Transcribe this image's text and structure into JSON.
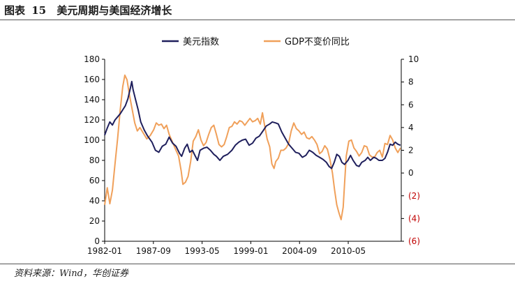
{
  "figure": {
    "label": "图表",
    "number": "15",
    "title": "美元周期与美国经济增长"
  },
  "source": "资料来源：Wind，华创证券",
  "colors": {
    "usd_index": "#1f1f5c",
    "gdp_yoy": "#f0a05a",
    "axis": "#000000",
    "negative_label": "#c00000"
  },
  "chart_data": {
    "type": "line",
    "title": "美元周期与美国经济增长",
    "xlabel": "",
    "ylabel": "",
    "x_start_year": 1982.0,
    "x_end_year": 2016.5,
    "x_tick_labels": [
      "1982-01",
      "1987-09",
      "1993-05",
      "1999-01",
      "2004-09",
      "2010-05"
    ],
    "x_tick_years": [
      1982.0,
      1987.667,
      1993.333,
      1999.0,
      2004.667,
      2010.333
    ],
    "ylim_left": [
      0,
      180
    ],
    "yticks_left": [
      0,
      20,
      40,
      60,
      80,
      100,
      120,
      140,
      160,
      180
    ],
    "ytick_labels_left": [
      "0",
      "20",
      "40",
      "60",
      "80",
      "100",
      "120",
      "140",
      "160",
      "180"
    ],
    "ylim_right": [
      -6,
      10
    ],
    "yticks_right": [
      -6,
      -4,
      -2,
      0,
      2,
      4,
      6,
      8,
      10
    ],
    "ytick_labels_right": [
      "(6)",
      "(4)",
      "(2)",
      "0",
      "2",
      "4",
      "6",
      "8",
      "10"
    ],
    "legend_position": "top",
    "series": [
      {
        "name": "美元指数",
        "axis": "left",
        "points": [
          [
            1982.0,
            105
          ],
          [
            1982.3,
            112
          ],
          [
            1982.6,
            118
          ],
          [
            1982.9,
            115
          ],
          [
            1983.2,
            120
          ],
          [
            1983.5,
            123
          ],
          [
            1983.8,
            126
          ],
          [
            1984.1,
            130
          ],
          [
            1984.4,
            134
          ],
          [
            1984.7,
            141
          ],
          [
            1985.0,
            152
          ],
          [
            1985.15,
            158
          ],
          [
            1985.3,
            150
          ],
          [
            1985.6,
            140
          ],
          [
            1985.9,
            130
          ],
          [
            1986.2,
            118
          ],
          [
            1986.6,
            110
          ],
          [
            1987.0,
            104
          ],
          [
            1987.5,
            98
          ],
          [
            1987.9,
            90
          ],
          [
            1988.3,
            88
          ],
          [
            1988.7,
            94
          ],
          [
            1989.1,
            96
          ],
          [
            1989.5,
            103
          ],
          [
            1989.9,
            97
          ],
          [
            1990.3,
            94
          ],
          [
            1990.7,
            87
          ],
          [
            1990.95,
            84
          ],
          [
            1991.3,
            92
          ],
          [
            1991.6,
            96
          ],
          [
            1991.9,
            88
          ],
          [
            1992.2,
            90
          ],
          [
            1992.5,
            85
          ],
          [
            1992.8,
            80
          ],
          [
            1993.1,
            90
          ],
          [
            1993.5,
            92
          ],
          [
            1993.9,
            93
          ],
          [
            1994.3,
            90
          ],
          [
            1994.7,
            86
          ],
          [
            1995.0,
            84
          ],
          [
            1995.4,
            80
          ],
          [
            1995.8,
            84
          ],
          [
            1996.3,
            86
          ],
          [
            1996.8,
            90
          ],
          [
            1997.2,
            95
          ],
          [
            1997.6,
            98
          ],
          [
            1998.0,
            100
          ],
          [
            1998.4,
            101
          ],
          [
            1998.8,
            95
          ],
          [
            1999.2,
            97
          ],
          [
            1999.6,
            102
          ],
          [
            2000.0,
            104
          ],
          [
            2000.4,
            109
          ],
          [
            2000.8,
            114
          ],
          [
            2001.2,
            116
          ],
          [
            2001.5,
            118
          ],
          [
            2001.9,
            117
          ],
          [
            2002.2,
            116
          ],
          [
            2002.6,
            108
          ],
          [
            2003.0,
            102
          ],
          [
            2003.4,
            96
          ],
          [
            2003.8,
            92
          ],
          [
            2004.2,
            88
          ],
          [
            2004.6,
            87
          ],
          [
            2005.0,
            83
          ],
          [
            2005.4,
            85
          ],
          [
            2005.8,
            90
          ],
          [
            2006.2,
            88
          ],
          [
            2006.6,
            85
          ],
          [
            2007.0,
            83
          ],
          [
            2007.4,
            81
          ],
          [
            2007.8,
            78
          ],
          [
            2008.1,
            74
          ],
          [
            2008.4,
            72
          ],
          [
            2008.7,
            78
          ],
          [
            2009.0,
            86
          ],
          [
            2009.3,
            84
          ],
          [
            2009.6,
            78
          ],
          [
            2009.9,
            76
          ],
          [
            2010.3,
            80
          ],
          [
            2010.6,
            85
          ],
          [
            2010.9,
            80
          ],
          [
            2011.3,
            75
          ],
          [
            2011.6,
            74
          ],
          [
            2011.9,
            78
          ],
          [
            2012.3,
            80
          ],
          [
            2012.6,
            83
          ],
          [
            2012.9,
            80
          ],
          [
            2013.3,
            83
          ],
          [
            2013.6,
            82
          ],
          [
            2013.9,
            80
          ],
          [
            2014.3,
            80
          ],
          [
            2014.6,
            82
          ],
          [
            2014.9,
            88
          ],
          [
            2015.2,
            96
          ],
          [
            2015.5,
            95
          ],
          [
            2015.8,
            98
          ],
          [
            2016.1,
            96
          ],
          [
            2016.4,
            95
          ]
        ]
      },
      {
        "name": "GDP不变价同比",
        "axis": "right",
        "points": [
          [
            1982.0,
            -2.8
          ],
          [
            1982.3,
            -1.3
          ],
          [
            1982.6,
            -2.7
          ],
          [
            1982.9,
            -1.5
          ],
          [
            1983.2,
            0.8
          ],
          [
            1983.5,
            3.0
          ],
          [
            1983.8,
            5.5
          ],
          [
            1984.1,
            7.6
          ],
          [
            1984.35,
            8.6
          ],
          [
            1984.6,
            8.2
          ],
          [
            1984.9,
            6.8
          ],
          [
            1985.2,
            5.6
          ],
          [
            1985.5,
            4.4
          ],
          [
            1985.8,
            3.7
          ],
          [
            1986.1,
            4.0
          ],
          [
            1986.5,
            3.5
          ],
          [
            1986.9,
            3.0
          ],
          [
            1987.3,
            3.3
          ],
          [
            1987.7,
            3.8
          ],
          [
            1988.0,
            4.4
          ],
          [
            1988.3,
            4.2
          ],
          [
            1988.6,
            4.3
          ],
          [
            1988.9,
            3.9
          ],
          [
            1989.2,
            4.2
          ],
          [
            1989.5,
            3.4
          ],
          [
            1989.9,
            2.7
          ],
          [
            1990.3,
            2.0
          ],
          [
            1990.6,
            1.5
          ],
          [
            1990.9,
            0.2
          ],
          [
            1991.1,
            -1.0
          ],
          [
            1991.4,
            -0.8
          ],
          [
            1991.7,
            -0.3
          ],
          [
            1992.0,
            1.0
          ],
          [
            1992.3,
            2.8
          ],
          [
            1992.6,
            3.2
          ],
          [
            1992.9,
            3.8
          ],
          [
            1993.2,
            2.9
          ],
          [
            1993.5,
            2.4
          ],
          [
            1993.8,
            2.7
          ],
          [
            1994.1,
            3.4
          ],
          [
            1994.4,
            4.0
          ],
          [
            1994.7,
            4.2
          ],
          [
            1995.0,
            3.4
          ],
          [
            1995.3,
            2.5
          ],
          [
            1995.6,
            2.3
          ],
          [
            1995.9,
            2.5
          ],
          [
            1996.2,
            3.2
          ],
          [
            1996.5,
            4.0
          ],
          [
            1996.8,
            4.1
          ],
          [
            1997.1,
            4.5
          ],
          [
            1997.4,
            4.3
          ],
          [
            1997.7,
            4.6
          ],
          [
            1998.0,
            4.5
          ],
          [
            1998.3,
            4.2
          ],
          [
            1998.6,
            4.5
          ],
          [
            1998.9,
            4.8
          ],
          [
            1999.2,
            4.5
          ],
          [
            1999.5,
            4.6
          ],
          [
            1999.8,
            4.8
          ],
          [
            2000.1,
            4.3
          ],
          [
            2000.35,
            5.3
          ],
          [
            2000.6,
            4.2
          ],
          [
            2000.9,
            3.0
          ],
          [
            2001.2,
            2.3
          ],
          [
            2001.45,
            0.8
          ],
          [
            2001.7,
            0.4
          ],
          [
            2001.9,
            1.0
          ],
          [
            2002.2,
            1.3
          ],
          [
            2002.5,
            2.0
          ],
          [
            2002.8,
            2.0
          ],
          [
            2003.1,
            2.2
          ],
          [
            2003.4,
            2.6
          ],
          [
            2003.7,
            3.7
          ],
          [
            2004.0,
            4.4
          ],
          [
            2004.3,
            3.9
          ],
          [
            2004.6,
            3.7
          ],
          [
            2004.9,
            3.4
          ],
          [
            2005.2,
            3.6
          ],
          [
            2005.5,
            3.1
          ],
          [
            2005.8,
            3.0
          ],
          [
            2006.1,
            3.2
          ],
          [
            2006.4,
            2.9
          ],
          [
            2006.7,
            2.5
          ],
          [
            2007.0,
            1.7
          ],
          [
            2007.3,
            1.9
          ],
          [
            2007.6,
            2.4
          ],
          [
            2007.9,
            2.1
          ],
          [
            2008.2,
            1.2
          ],
          [
            2008.5,
            0.0
          ],
          [
            2008.75,
            -1.5
          ],
          [
            2009.0,
            -2.8
          ],
          [
            2009.25,
            -3.5
          ],
          [
            2009.5,
            -4.1
          ],
          [
            2009.75,
            -3.0
          ],
          [
            2009.9,
            -1.0
          ],
          [
            2010.1,
            1.5
          ],
          [
            2010.4,
            2.8
          ],
          [
            2010.7,
            2.9
          ],
          [
            2011.0,
            2.2
          ],
          [
            2011.3,
            1.9
          ],
          [
            2011.6,
            1.5
          ],
          [
            2011.9,
            1.8
          ],
          [
            2012.2,
            2.4
          ],
          [
            2012.5,
            2.3
          ],
          [
            2012.8,
            1.6
          ],
          [
            2013.1,
            1.4
          ],
          [
            2013.4,
            1.4
          ],
          [
            2013.7,
            1.8
          ],
          [
            2014.0,
            2.0
          ],
          [
            2014.3,
            1.4
          ],
          [
            2014.6,
            2.6
          ],
          [
            2014.9,
            2.5
          ],
          [
            2015.2,
            3.3
          ],
          [
            2015.5,
            2.9
          ],
          [
            2015.8,
            2.2
          ],
          [
            2016.1,
            1.8
          ],
          [
            2016.4,
            2.2
          ]
        ]
      }
    ]
  }
}
